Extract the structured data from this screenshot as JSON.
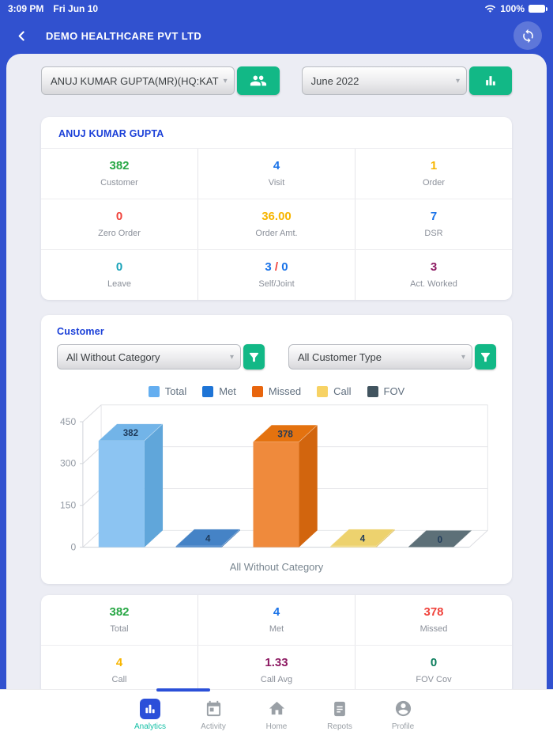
{
  "status_bar": {
    "time": "3:09 PM",
    "date": "Fri Jun 10",
    "battery_percent": "100%"
  },
  "app_bar": {
    "title": "DEMO HEALTHCARE PVT LTD"
  },
  "filter_bar": {
    "user_select": "ANUJ KUMAR GUPTA(MR)(HQ:KAT",
    "month_select": "June 2022"
  },
  "summary_card": {
    "title": "ANUJ KUMAR GUPTA",
    "stats": [
      {
        "value": "382",
        "label": "Customer",
        "color": "#28a745"
      },
      {
        "value": "4",
        "label": "Visit",
        "color": "#1a73e8"
      },
      {
        "value": "1",
        "label": "Order",
        "color": "#f7b500"
      },
      {
        "value": "0",
        "label": "Zero Order",
        "color": "#f0433c"
      },
      {
        "value": "36.00",
        "label": "Order Amt.",
        "color": "#f7b500"
      },
      {
        "value": "7",
        "label": "DSR",
        "color": "#1a73e8"
      },
      {
        "value": "0",
        "label": "Leave",
        "color": "#17a2b8"
      },
      {
        "value": "3 / 0",
        "label": "Self/Joint",
        "parts": [
          {
            "text": "3",
            "color": "#1a73e8"
          },
          {
            "text": " / ",
            "color": "#f0433c"
          },
          {
            "text": "0",
            "color": "#1a73e8"
          }
        ]
      },
      {
        "value": "3",
        "label": "Act. Worked",
        "color": "#8d1a62"
      }
    ]
  },
  "customer_card": {
    "title": "Customer",
    "category_select": "All Without Category",
    "type_select": "All Customer Type"
  },
  "chart_data": {
    "type": "bar",
    "style": "3d-column",
    "categories": [
      "All Without Category"
    ],
    "series": [
      {
        "name": "Total",
        "value": 382,
        "color": "#64aef0",
        "color_front": "#8cc4f2",
        "color_top": "#72b4e8",
        "color_side": "#60a6da"
      },
      {
        "name": "Met",
        "value": 4,
        "color": "#1e74d6",
        "color_front": "#3f81c9",
        "color_top": "#4583c6",
        "color_side": "#2f6cb0"
      },
      {
        "name": "Missed",
        "value": 378,
        "color": "#e8650d",
        "color_front": "#ef8a3c",
        "color_top": "#e4720f",
        "color_side": "#d2650e"
      },
      {
        "name": "Call",
        "value": 4,
        "color": "#f7d264",
        "color_front": "#f3da7a",
        "color_top": "#edd26e",
        "color_side": "#d9b84e"
      },
      {
        "name": "FOV",
        "value": 0,
        "color": "#41545f",
        "color_front": "#667a82",
        "color_top": "#5d7078",
        "color_side": "#4a5b63"
      }
    ],
    "ylim": [
      0,
      450
    ],
    "yticks": [
      0,
      150,
      300,
      450
    ],
    "xlabel": "All Without Category",
    "legend_position": "top",
    "grid": true,
    "value_label_color": "#1e3a5a"
  },
  "results_card": {
    "stats": [
      {
        "value": "382",
        "label": "Total",
        "color": "#28a745"
      },
      {
        "value": "4",
        "label": "Met",
        "color": "#1a73e8"
      },
      {
        "value": "378",
        "label": "Missed",
        "color": "#f0433c"
      },
      {
        "value": "4",
        "label": "Call",
        "color": "#f7b500"
      },
      {
        "value": "1.33",
        "label": "Call Avg",
        "color": "#8d1a62"
      },
      {
        "value": "0",
        "label": "FOV Cov",
        "color": "#0b7d5c"
      }
    ]
  },
  "bottom_nav": {
    "active_color": "#10bfa5",
    "items": [
      {
        "label": "Analytics",
        "icon": "bar-chart",
        "active": true
      },
      {
        "label": "Activity",
        "icon": "calendar",
        "active": false
      },
      {
        "label": "Home",
        "icon": "home",
        "active": false
      },
      {
        "label": "Repots",
        "icon": "document",
        "active": false
      },
      {
        "label": "Profile",
        "icon": "person",
        "active": false
      }
    ]
  }
}
